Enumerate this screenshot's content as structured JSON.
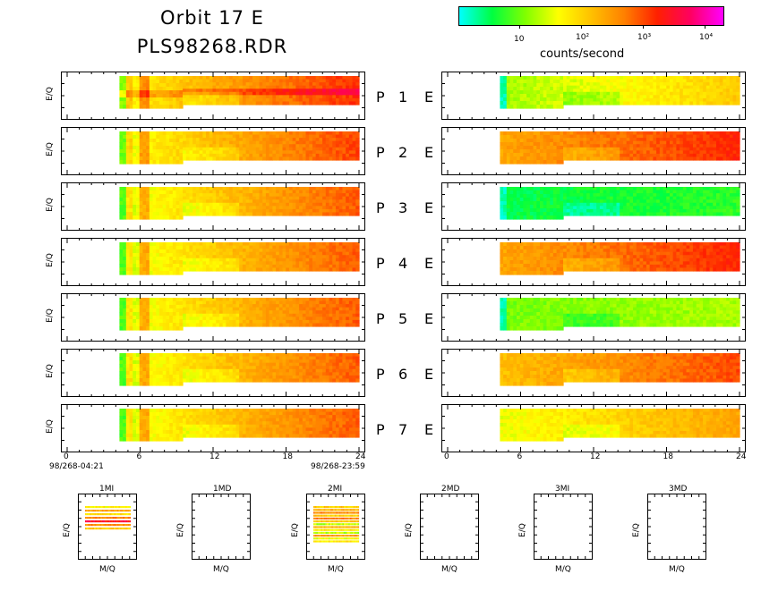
{
  "header": {
    "title_line1": "Orbit 17 E",
    "title_line2": "PLS98268.RDR"
  },
  "colorbar": {
    "label": "counts/second",
    "tick_labels": [
      "10",
      "10²",
      "10³",
      "10⁴"
    ],
    "colors": [
      "#00ffff",
      "#00ff40",
      "#80ff00",
      "#ffff00",
      "#ffc000",
      "#ff8000",
      "#ff2000",
      "#ff0060",
      "#ff00ff"
    ]
  },
  "chart_data": {
    "type": "heatmap",
    "rows": [
      {
        "label": "P",
        "num": "1",
        "side": "E"
      },
      {
        "label": "P",
        "num": "2",
        "side": "E"
      },
      {
        "label": "P",
        "num": "3",
        "side": "E"
      },
      {
        "label": "P",
        "num": "4",
        "side": "E"
      },
      {
        "label": "P",
        "num": "5",
        "side": "E"
      },
      {
        "label": "P",
        "num": "6",
        "side": "E"
      },
      {
        "label": "P",
        "num": "7",
        "side": "E"
      }
    ],
    "ylabel": "E/Q",
    "xlim": [
      0,
      24
    ],
    "x_ticks": [
      "0",
      "6",
      "12",
      "18",
      "24"
    ],
    "start_time": "98/268-04:21",
    "end_time": "98/268-23:59",
    "data_start_hour": 4.3,
    "data_end_hour": 24
  },
  "mass_panels": {
    "xlabel": "M/Q",
    "ylabel": "E/Q",
    "titles": [
      "1MI",
      "1MD",
      "2MI",
      "2MD",
      "3MI",
      "3MD"
    ]
  }
}
